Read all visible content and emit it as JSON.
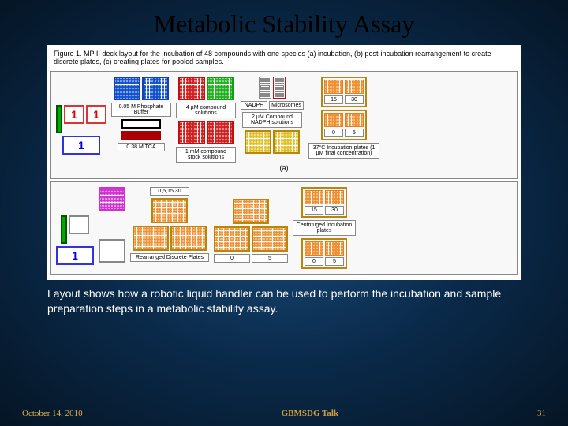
{
  "title": "Metabolic Stability Assay",
  "figure_caption": "Figure 1. MP II deck layout for the incubation of 48 compounds with one species (a) incubation, (b) post-incubation rearrangement to create discrete plates, (c) creating plates for pooled samples.",
  "caption": "Layout shows how a robotic liquid handler can be used to perform the incubation and sample preparation steps in a metabolic stability assay.",
  "footer": {
    "date": "October 14, 2010",
    "venue": "GBMSDG Talk",
    "page": "31"
  },
  "panel_a": {
    "letter": "(a)",
    "buffer_label": "0.05 M Phosphate Buffer",
    "tca_label": "0.38 M TCA",
    "nadph_label": "NADPH",
    "microsomes_label": "Microsomes",
    "compound4_label": "4 µM compound solutions",
    "compound2_label": "2 µM Compound NADPH solutions",
    "stock_label": "1 mM compound stock solutions",
    "incub_label": "37°C Incubation plates (1 µM final concentration)",
    "incub_nums": [
      "15",
      "30",
      "0",
      "5"
    ],
    "robot_label": "1"
  },
  "panel_b": {
    "robot_label": "1",
    "times_label": "0,5,15,30",
    "incub_nums": [
      "15",
      "30",
      "0",
      "5"
    ],
    "centrifuged_label": "Centrifuged Incubation plates",
    "rearranged_label": "Rearranged Discrete Plates",
    "rearranged_nums": [
      "0",
      "5"
    ]
  },
  "colors": {
    "blue": "#1040c0",
    "blue_dot": "#1050d0",
    "red": "#c01010",
    "red_dot": "#d02020",
    "green": "#10a010",
    "green_dot": "#20b020",
    "yellow": "#e0c020",
    "orange": "#e08020",
    "orange_dot": "#f09030",
    "magenta": "#d030d0",
    "holder": "#b8860b",
    "white": "#ffffff",
    "cyan": "#40d0f0",
    "border_dark": "#444"
  }
}
